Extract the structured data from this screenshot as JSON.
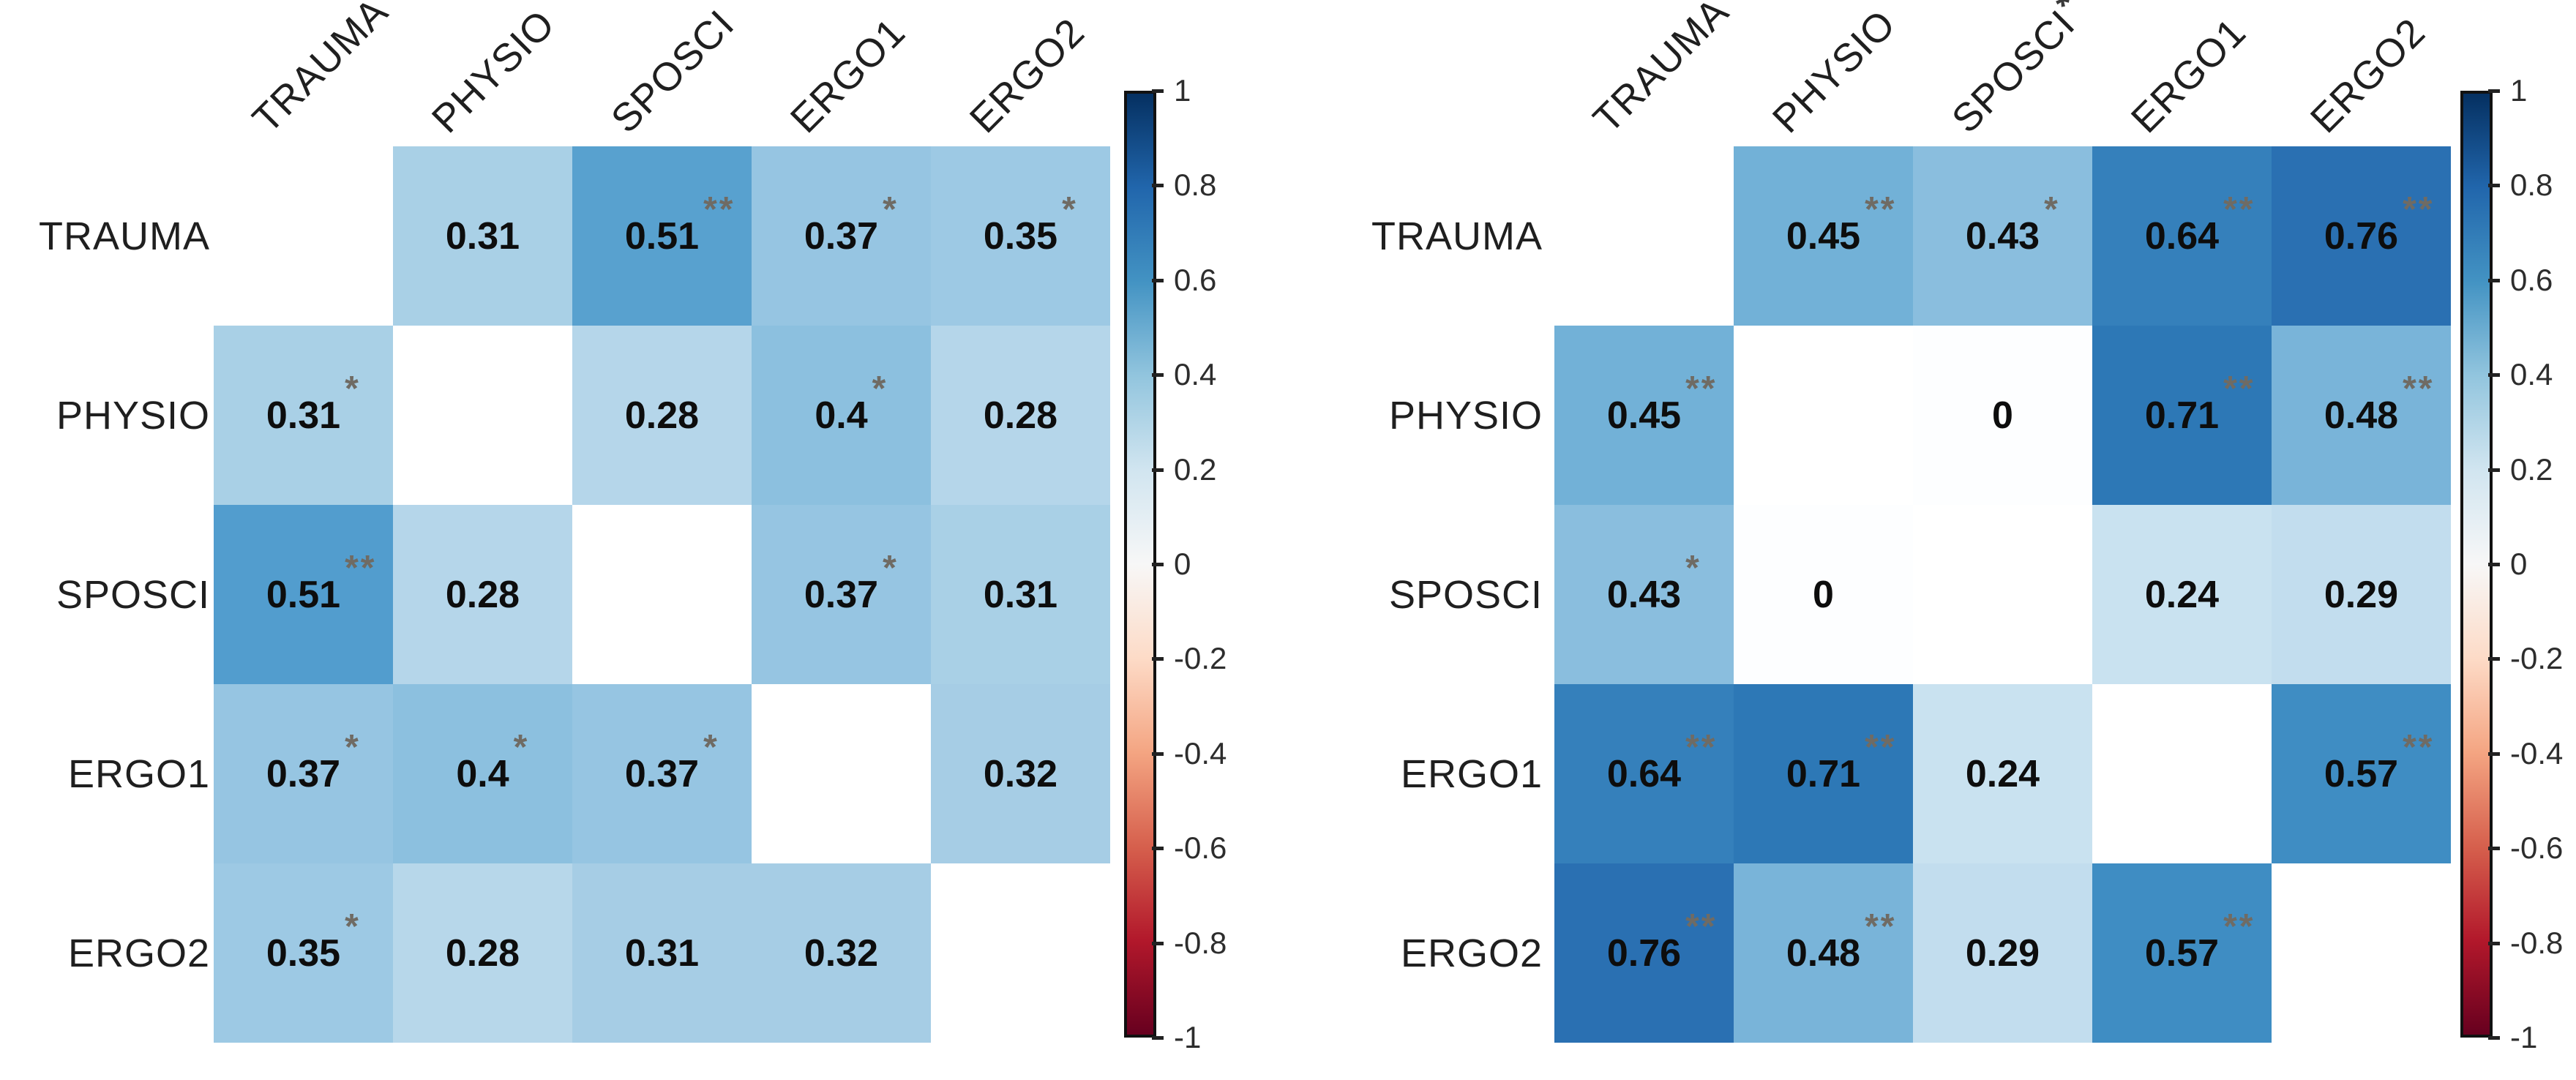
{
  "figure": {
    "background": "#ffffff",
    "value_text_color": "#0d0d0d",
    "label_text_color": "#1f1f1f",
    "star_color": "#6f6b64",
    "header_star_color": "#3a3a3a",
    "tick_text_color": "#2d2d2d"
  },
  "chart_data": [
    {
      "type": "heatmap",
      "title": "",
      "position": "left",
      "variables": [
        "TRAUMA",
        "PHYSIO",
        "SPOSCI",
        "ERGO1",
        "ERGO2"
      ],
      "col_header_stars": [
        "",
        "",
        "",
        "",
        ""
      ],
      "values": [
        [
          null,
          0.31,
          0.51,
          0.37,
          0.35
        ],
        [
          0.31,
          null,
          0.28,
          0.4,
          0.28
        ],
        [
          0.51,
          0.28,
          null,
          0.37,
          0.31
        ],
        [
          0.37,
          0.4,
          0.37,
          null,
          0.32
        ],
        [
          0.35,
          0.28,
          0.31,
          0.32,
          null
        ]
      ],
      "significance": [
        [
          "",
          "",
          "**",
          "*",
          "*"
        ],
        [
          "*",
          "",
          "",
          "*",
          ""
        ],
        [
          "**",
          "",
          "",
          "*",
          ""
        ],
        [
          "*",
          "*",
          "*",
          "",
          ""
        ],
        [
          "*",
          "",
          "",
          "",
          ""
        ]
      ],
      "cell_colors": [
        [
          null,
          "#a9d0e6",
          "#58a1cf",
          "#96c5e2",
          "#9dc9e4"
        ],
        [
          "#a9d0e6",
          null,
          "#b5d6ea",
          "#8cc0df",
          "#b5d6ea"
        ],
        [
          "#529dce",
          "#b5d6ea",
          null,
          "#96c5e2",
          "#a9d0e6"
        ],
        [
          "#96c5e2",
          "#8cc0df",
          "#96c5e2",
          null,
          "#a6cde5"
        ],
        [
          "#9dc9e4",
          "#b7d7ea",
          "#a6cde5",
          "#a6cde5",
          null
        ]
      ],
      "colorbar": {
        "min": -1,
        "max": 1,
        "tick_labels": [
          "1",
          "0.8",
          "0.6",
          "0.4",
          "0.2",
          "0",
          "-0.2",
          "-0.4",
          "-0.6",
          "-0.8",
          "-1"
        ],
        "colormap": "RdBu",
        "gradient_stops": [
          "#053061",
          "#2166ac",
          "#4393c3",
          "#92c5de",
          "#d1e5f0",
          "#f7f7f7",
          "#fddbc7",
          "#f4a582",
          "#d6604d",
          "#b2182b",
          "#67001f"
        ]
      }
    },
    {
      "type": "heatmap",
      "title": "",
      "position": "right",
      "variables": [
        "TRAUMA",
        "PHYSIO",
        "SPOSCI",
        "ERGO1",
        "ERGO2"
      ],
      "col_header_stars": [
        "",
        "",
        "*",
        "",
        ""
      ],
      "values": [
        [
          null,
          0.45,
          0.43,
          0.64,
          0.76
        ],
        [
          0.45,
          null,
          0,
          0.71,
          0.48
        ],
        [
          0.43,
          0,
          null,
          0.24,
          0.29
        ],
        [
          0.64,
          0.71,
          0.24,
          null,
          0.57
        ],
        [
          0.76,
          0.48,
          0.29,
          0.57,
          null
        ]
      ],
      "significance": [
        [
          "",
          "**",
          "*",
          "**",
          "**"
        ],
        [
          "**",
          "",
          "",
          "**",
          "**"
        ],
        [
          "*",
          "",
          "",
          "",
          ""
        ],
        [
          "**",
          "**",
          "",
          "",
          "**"
        ],
        [
          "**",
          "**",
          "",
          "**",
          ""
        ]
      ],
      "cell_colors": [
        [
          null,
          "#72b1d7",
          "#8abede",
          "#3580bb",
          "#2a70b2"
        ],
        [
          "#72b1d7",
          null,
          "#fdfeff",
          "#2d78b6",
          "#79b4d9"
        ],
        [
          "#8abede",
          "#fdfeff",
          null,
          "#c9e2f0",
          "#c2ddee"
        ],
        [
          "#3580bb",
          "#2d78b6",
          "#c9e2f0",
          null,
          "#3f8dc3"
        ],
        [
          "#2a70b2",
          "#79b4d9",
          "#c2ddee",
          "#3f8dc3",
          null
        ]
      ],
      "colorbar": {
        "min": -1,
        "max": 1,
        "tick_labels": [
          "1",
          "0.8",
          "0.6",
          "0.4",
          "0.2",
          "0",
          "-0.2",
          "-0.4",
          "-0.6",
          "-0.8",
          "-1"
        ],
        "colormap": "RdBu",
        "gradient_stops": [
          "#053061",
          "#2166ac",
          "#4393c3",
          "#92c5de",
          "#d1e5f0",
          "#f7f7f7",
          "#fddbc7",
          "#f4a582",
          "#d6604d",
          "#b2182b",
          "#67001f"
        ]
      }
    }
  ]
}
